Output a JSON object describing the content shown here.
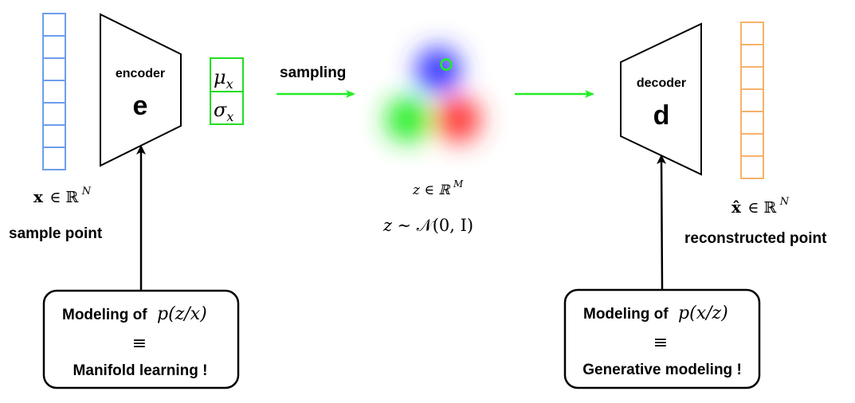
{
  "input_vector": {
    "label": "x ∈ ℝ^N",
    "label_var": "x",
    "label_in": "∈ ℝ",
    "label_sup": "N",
    "caption": "sample point",
    "cell_count": 7,
    "color": "#6d9eeb"
  },
  "encoder": {
    "title": "encoder",
    "symbol": "e"
  },
  "latent_params": {
    "mu": "μ",
    "sigma": "σ",
    "subscript": "x",
    "color": "#22dd22"
  },
  "sampling": {
    "label": "sampling",
    "arrow_color": "#22ee22"
  },
  "latent_space": {
    "blob_colors": [
      "#3333ff",
      "#22ee22",
      "#ff3333"
    ],
    "marker_color": "#22ee22",
    "space_label": "z ∈ ℝ^M",
    "space_var": "z ∈ ℝ",
    "space_sup": "M",
    "prior_label": "z ~ 𝒩(0, I)",
    "prior_var": "z",
    "prior_sim": "∼",
    "prior_dist": "𝒩(0, I)"
  },
  "decoder": {
    "title": "decoder",
    "symbol": "d"
  },
  "output_vector": {
    "label": "x̂ ∈ ℝ^N",
    "label_var": "x̂",
    "label_in": "∈ ℝ",
    "label_sup": "N",
    "caption": "reconstructed point",
    "cell_count": 7,
    "color": "#f6b26b"
  },
  "left_box": {
    "line1_text": "Modeling of",
    "line1_math": "p(z/x)",
    "line2": "≡",
    "line3": "Manifold learning !"
  },
  "right_box": {
    "line1_text": "Modeling of",
    "line1_math": "p(x/z)",
    "line2": "≡",
    "line3": "Generative modeling !"
  }
}
